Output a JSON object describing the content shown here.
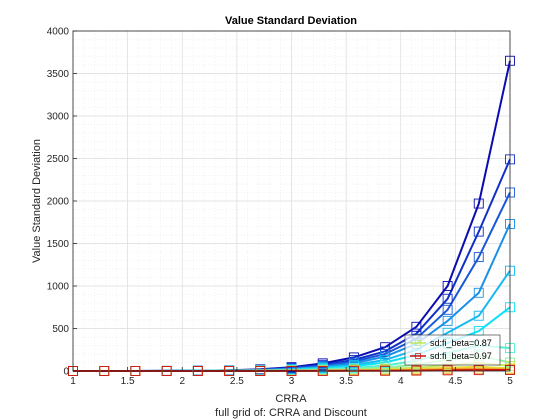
{
  "chart_data": {
    "type": "line",
    "title": "Value Standard Deviation",
    "xlabel": "CRRA",
    "ylabel": "Value Standard Deviation",
    "caption": "full grid of: CRRA and Discount",
    "xlim": [
      1,
      5
    ],
    "ylim": [
      0,
      4000
    ],
    "xticks": [
      1,
      1.5,
      2,
      2.5,
      3,
      3.5,
      4,
      4.5,
      5
    ],
    "xtick_labels": [
      "1",
      "1.5",
      "2",
      "2.5",
      "3",
      "3.5",
      "4",
      "4.5",
      "5"
    ],
    "yticks": [
      0,
      500,
      1000,
      1500,
      2000,
      2500,
      3000,
      3500,
      4000
    ],
    "ytick_labels": [
      "0",
      "500",
      "1000",
      "1500",
      "2000",
      "2500",
      "3000",
      "3500",
      "4000"
    ],
    "grid": true,
    "legend_placement": "bottom-right",
    "marker": "square",
    "x": [
      1,
      1.286,
      1.571,
      1.857,
      2.143,
      2.429,
      2.714,
      3,
      3.286,
      3.571,
      3.857,
      4.143,
      4.429,
      4.714,
      5
    ],
    "series": [
      {
        "name": "",
        "color": "#0b0bb0",
        "values": [
          0,
          0,
          0,
          1,
          3,
          8,
          20,
          45,
          90,
          160,
          280,
          520,
          1000,
          1970,
          3650
        ]
      },
      {
        "name": "",
        "color": "#1030c8",
        "values": [
          0,
          0,
          0,
          1,
          3,
          7,
          16,
          36,
          72,
          130,
          230,
          440,
          850,
          1640,
          2490
        ]
      },
      {
        "name": "",
        "color": "#1858d8",
        "values": [
          0,
          0,
          0,
          1,
          2,
          6,
          13,
          30,
          60,
          110,
          200,
          380,
          720,
          1340,
          2100
        ]
      },
      {
        "name": "",
        "color": "#1a90e8",
        "values": [
          0,
          0,
          0,
          1,
          2,
          5,
          11,
          25,
          50,
          90,
          170,
          320,
          590,
          920,
          1730
        ]
      },
      {
        "name": "",
        "color": "#1ab8f0",
        "values": [
          0,
          0,
          0,
          1,
          2,
          4,
          9,
          20,
          40,
          70,
          130,
          250,
          450,
          650,
          1180
        ]
      },
      {
        "name": "",
        "color": "#10e0f8",
        "values": [
          0,
          0,
          0,
          0,
          1,
          3,
          7,
          15,
          30,
          55,
          100,
          190,
          330,
          470,
          750
        ]
      },
      {
        "name": "",
        "color": "#50f0d0",
        "values": [
          0,
          0,
          0,
          0,
          1,
          2,
          5,
          10,
          20,
          35,
          65,
          120,
          210,
          300,
          270
        ]
      },
      {
        "name": "",
        "color": "#90f0a0",
        "values": [
          0,
          0,
          0,
          0,
          0,
          1,
          3,
          6,
          12,
          22,
          40,
          75,
          130,
          180,
          100
        ]
      },
      {
        "name": "sd:fi_beta=0.87",
        "color": "#c0e860",
        "values": [
          0,
          0,
          0,
          0,
          0,
          1,
          2,
          4,
          7,
          12,
          22,
          40,
          70,
          95,
          60
        ]
      },
      {
        "name": "",
        "color": "#e8d838",
        "values": [
          0,
          0,
          0,
          0,
          0,
          0,
          1,
          2,
          4,
          7,
          12,
          22,
          38,
          50,
          30
        ]
      },
      {
        "name": "",
        "color": "#f0a028",
        "values": [
          0,
          0,
          0,
          0,
          0,
          0,
          1,
          1,
          2,
          4,
          7,
          12,
          20,
          26,
          18
        ]
      },
      {
        "name": "sd:fi_beta=0.97",
        "color": "#c81010",
        "values": [
          0,
          0,
          0,
          0,
          0,
          0,
          0,
          1,
          1,
          2,
          3,
          5,
          8,
          10,
          12
        ]
      }
    ]
  }
}
